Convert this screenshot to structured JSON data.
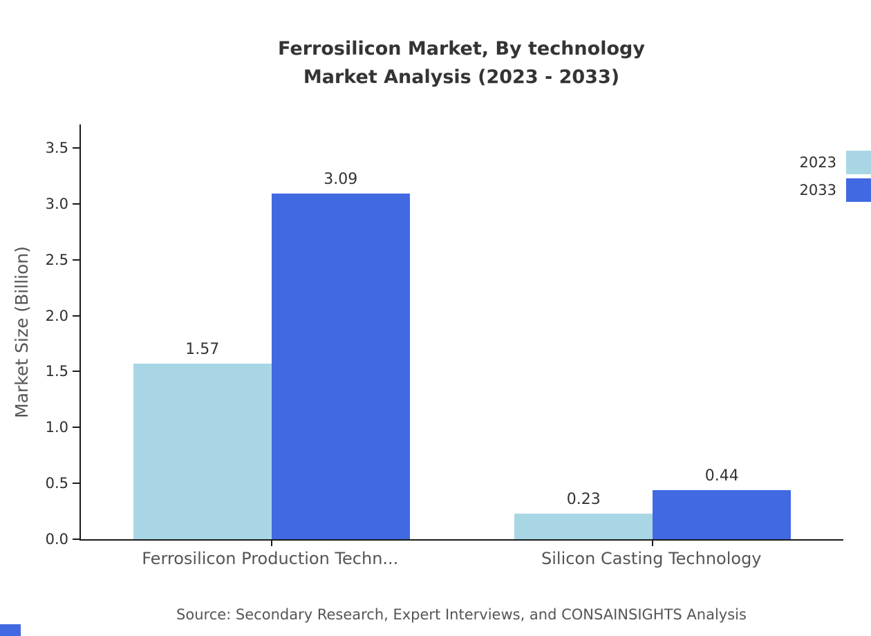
{
  "title": {
    "line1": "Ferrosilicon Market, By technology",
    "line2": "Market Analysis (2023 - 2033)"
  },
  "ylabel": "Market Size (Billion)",
  "source": "Source: Secondary Research, Expert Interviews, and CONSAINSIGHTS Analysis",
  "colors": {
    "series_2023": "#A9D6E5",
    "series_2033": "#4169E1",
    "axis": "#1a1a1a",
    "accent": "#4169E1"
  },
  "chart_data": {
    "type": "bar",
    "title": "Ferrosilicon Market, By technology — Market Analysis (2023 - 2033)",
    "categories": [
      "Ferrosilicon Production Techn...",
      "Silicon Casting Technology"
    ],
    "series": [
      {
        "name": "2023",
        "color": "#A9D6E5",
        "values": [
          1.57,
          0.23
        ]
      },
      {
        "name": "2033",
        "color": "#4169E1",
        "values": [
          3.09,
          0.44
        ]
      }
    ],
    "xlabel": "",
    "ylabel": "Market Size (Billion)",
    "ylim": [
      0,
      3.5
    ],
    "yticks": [
      0.0,
      0.5,
      1.0,
      1.5,
      2.0,
      2.5,
      3.0,
      3.5
    ],
    "grid": false,
    "legend_position": "top-right",
    "value_labels": [
      "1.57",
      "3.09",
      "0.23",
      "0.44"
    ]
  }
}
